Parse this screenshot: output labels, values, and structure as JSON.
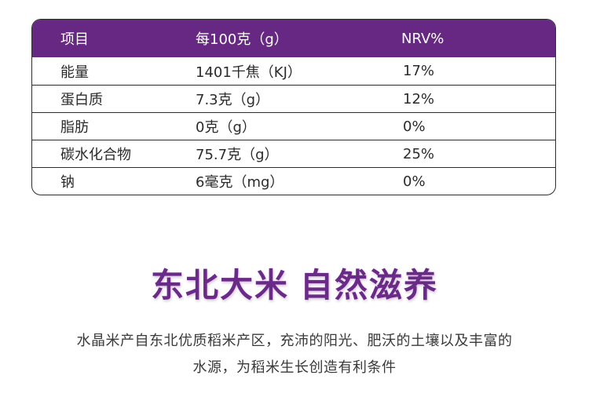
{
  "table": {
    "headers": [
      "项目",
      "每100克（g）",
      "NRV%"
    ],
    "rows": [
      {
        "item": "能量",
        "per100": "1401千焦（KJ）",
        "nrv": "17%"
      },
      {
        "item": "蛋白质",
        "per100": "7.3克（g）",
        "nrv": "12%"
      },
      {
        "item": "脂肪",
        "per100": "0克（g）",
        "nrv": "0%"
      },
      {
        "item": "碳水化合物",
        "per100": "75.7克（g）",
        "nrv": "25%"
      },
      {
        "item": "钠",
        "per100": "6毫克（mg）",
        "nrv": "0%"
      }
    ]
  },
  "slogan": {
    "part1": "东北大米",
    "part2": "自然滋养"
  },
  "description": {
    "line1": "水晶米产自东北优质稻米产区，充沛的阳光、肥沃的土壤以及丰富的",
    "line2": "水源，为稻米生长创造有利条件"
  },
  "colors": {
    "header_bg": "#672883",
    "slogan": "#6a2a88"
  }
}
